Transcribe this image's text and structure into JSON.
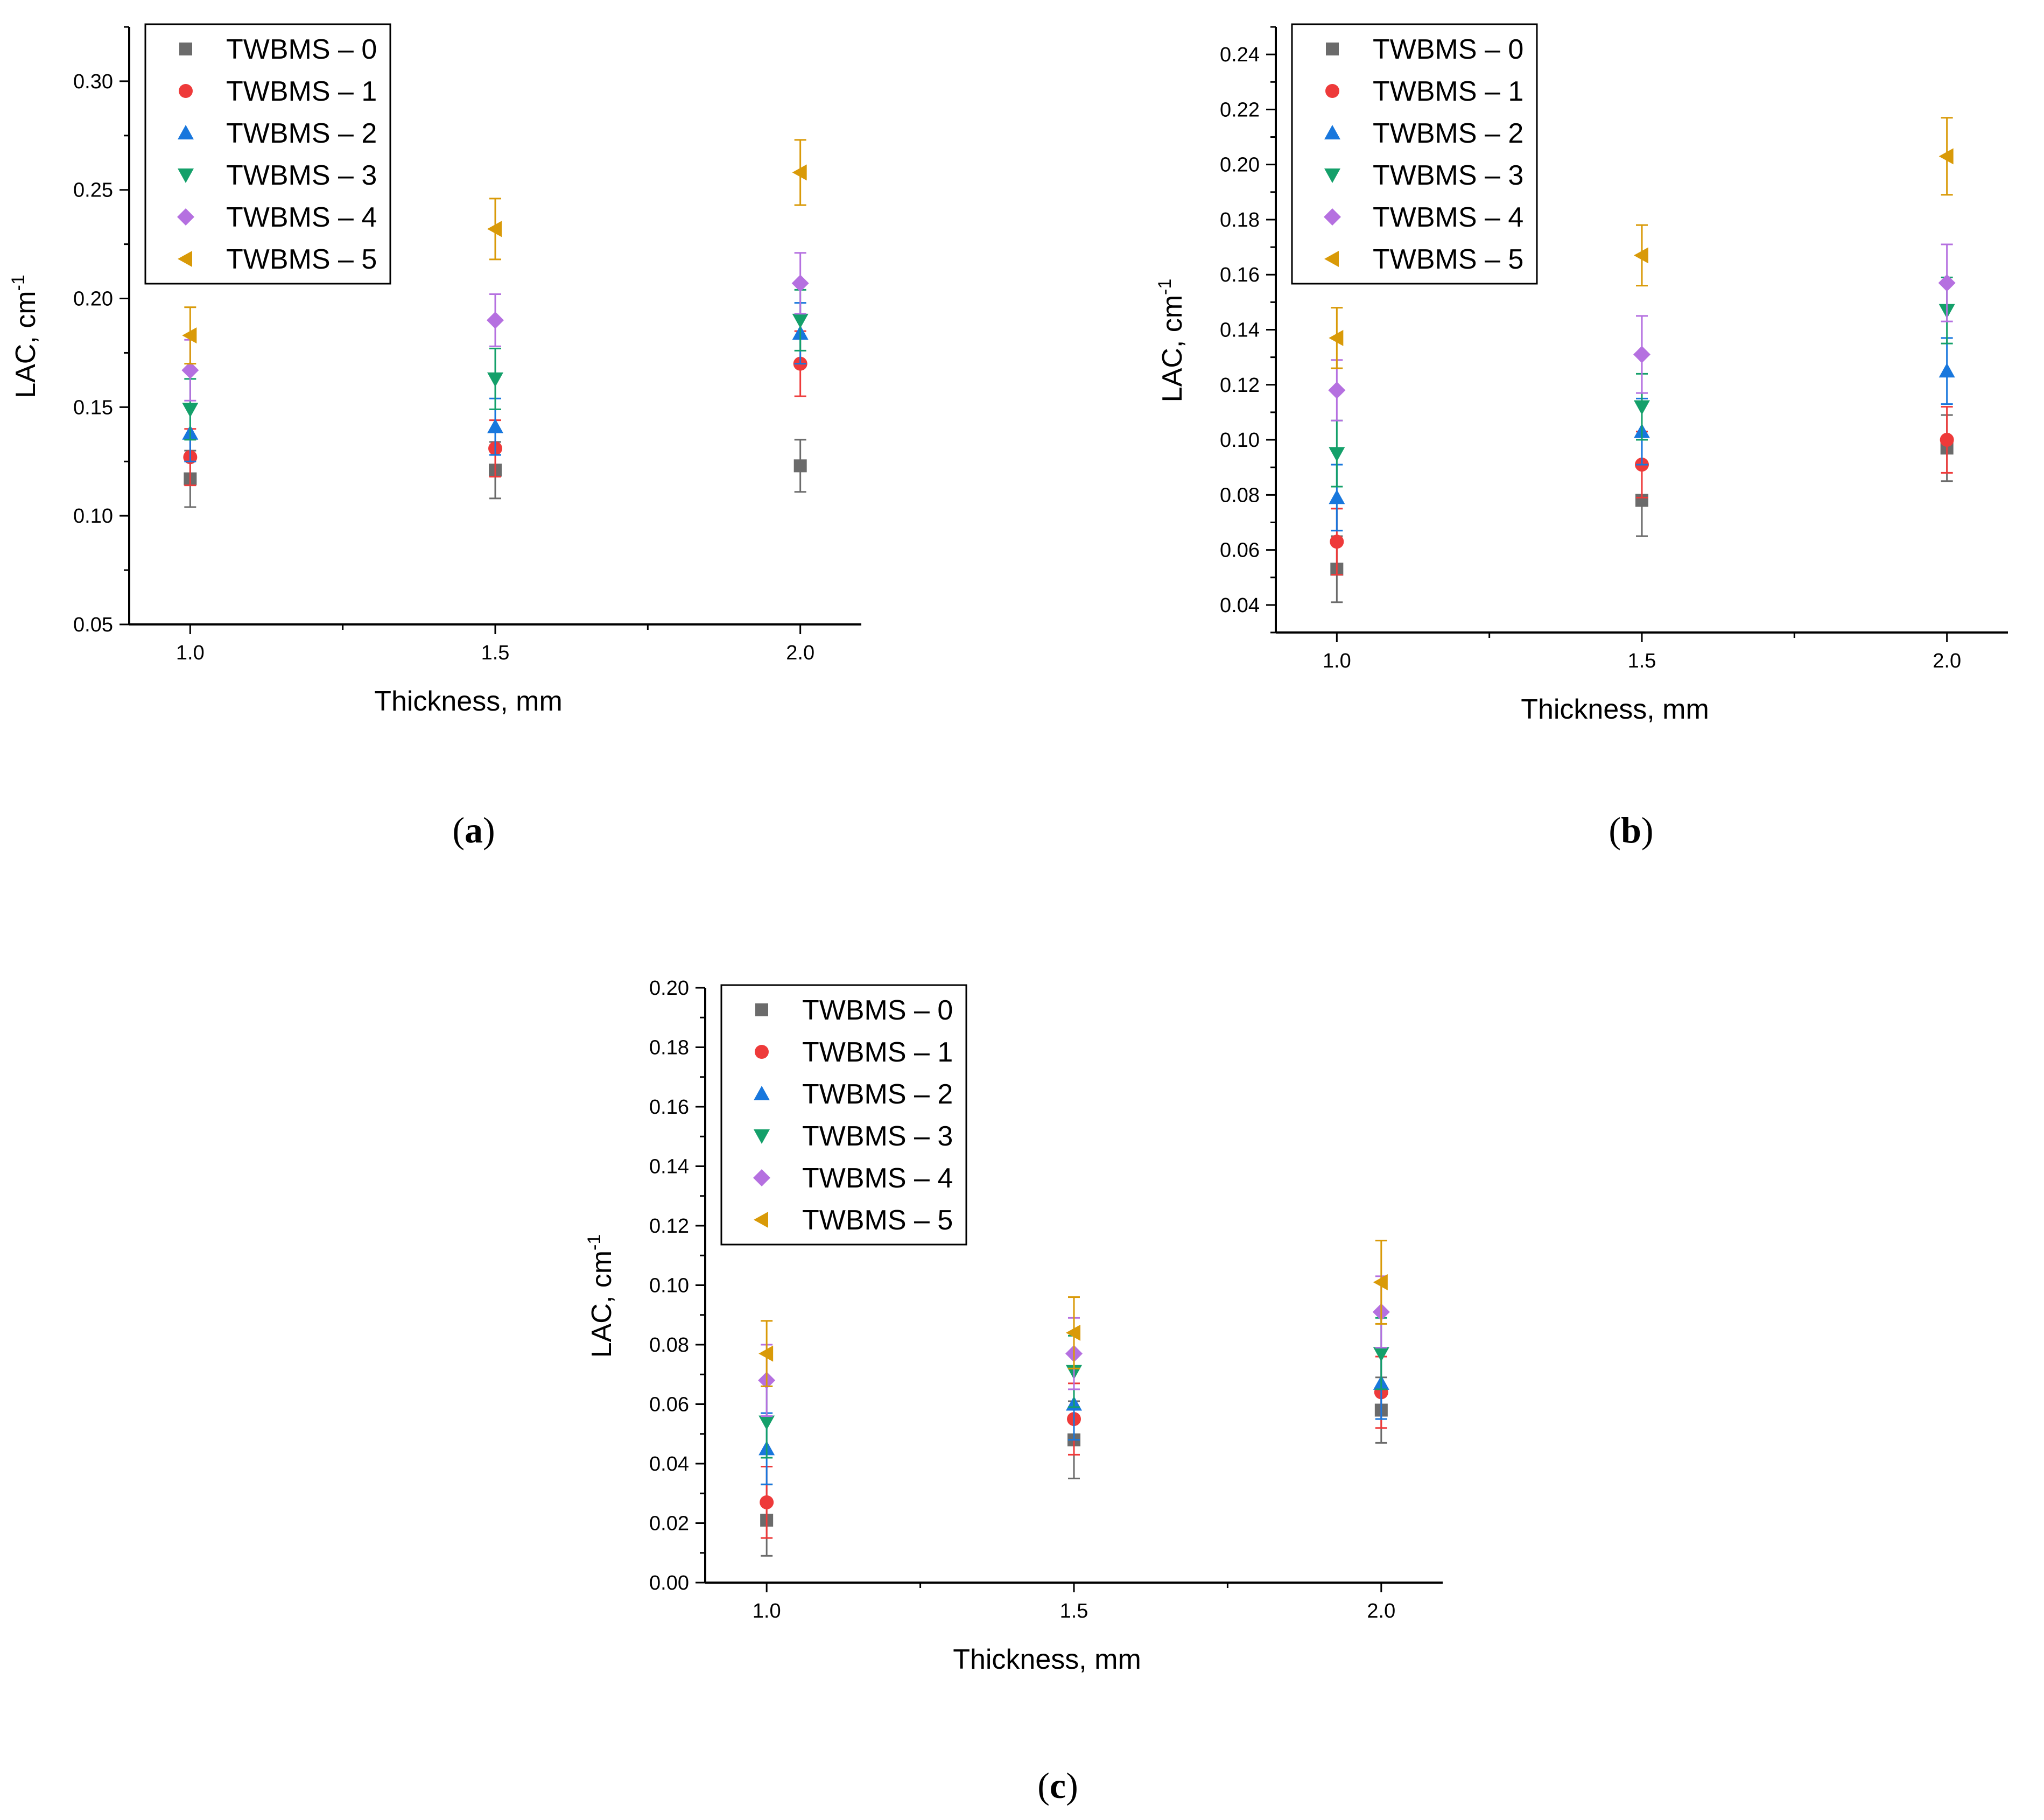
{
  "series_styles": [
    {
      "name": "TWBMS – 0",
      "color": "#6b6b6b",
      "marker": "square"
    },
    {
      "name": "TWBMS – 1",
      "color": "#ee3a3a",
      "marker": "circle"
    },
    {
      "name": "TWBMS – 2",
      "color": "#1877dd",
      "marker": "triangle-up"
    },
    {
      "name": "TWBMS – 3",
      "color": "#14a06a",
      "marker": "triangle-down"
    },
    {
      "name": "TWBMS – 4",
      "color": "#b570e0",
      "marker": "diamond"
    },
    {
      "name": "TWBMS – 5",
      "color": "#d99a08",
      "marker": "triangle-left"
    }
  ],
  "chart_data": [
    {
      "type": "scatter",
      "panel_label": "a",
      "xlabel": "Thickness, mm",
      "ylabel": "LAC, cm",
      "ylabel_sup": "-1",
      "xlim": [
        0.9,
        2.1
      ],
      "ylim": [
        0.05,
        0.325
      ],
      "xticks": [
        1.0,
        1.5,
        2.0
      ],
      "xtick_labels": [
        "1.0",
        "1.5",
        "2.0"
      ],
      "yticks": [
        0.05,
        0.1,
        0.15,
        0.2,
        0.25,
        0.3
      ],
      "ytick_labels": [
        "0.05",
        "0.10",
        "0.15",
        "0.20",
        "0.25",
        "0.30"
      ],
      "legend_position": "top-left",
      "x": [
        1.0,
        1.5,
        2.0
      ],
      "series": [
        {
          "name": "TWBMS – 0",
          "values": [
            0.117,
            0.121,
            0.123
          ],
          "errors": [
            0.013,
            0.013,
            0.012
          ]
        },
        {
          "name": "TWBMS – 1",
          "values": [
            0.127,
            0.131,
            0.17
          ],
          "errors": [
            0.013,
            0.013,
            0.015
          ]
        },
        {
          "name": "TWBMS – 2",
          "values": [
            0.138,
            0.141,
            0.184
          ],
          "errors": [
            0.013,
            0.013,
            0.014
          ]
        },
        {
          "name": "TWBMS – 3",
          "values": [
            0.149,
            0.163,
            0.19
          ],
          "errors": [
            0.014,
            0.014,
            0.014
          ]
        },
        {
          "name": "TWBMS – 4",
          "values": [
            0.167,
            0.19,
            0.207
          ],
          "errors": [
            0.014,
            0.012,
            0.014
          ]
        },
        {
          "name": "TWBMS – 5",
          "values": [
            0.183,
            0.232,
            0.258
          ],
          "errors": [
            0.013,
            0.014,
            0.015
          ]
        }
      ]
    },
    {
      "type": "scatter",
      "panel_label": "b",
      "xlabel": "Thickness, mm",
      "ylabel": "LAC, cm",
      "ylabel_sup": "-1",
      "xlim": [
        0.9,
        2.1
      ],
      "ylim": [
        0.03,
        0.25
      ],
      "xticks": [
        1.0,
        1.5,
        2.0
      ],
      "xtick_labels": [
        "1.0",
        "1.5",
        "2.0"
      ],
      "yticks": [
        0.04,
        0.06,
        0.08,
        0.1,
        0.12,
        0.14,
        0.16,
        0.18,
        0.2,
        0.22,
        0.24
      ],
      "ytick_labels": [
        "0.04",
        "0.06",
        "0.08",
        "0.10",
        "0.12",
        "0.14",
        "0.16",
        "0.18",
        "0.20",
        "0.22",
        "0.24"
      ],
      "legend_position": "top-left",
      "x": [
        1.0,
        1.5,
        2.0
      ],
      "series": [
        {
          "name": "TWBMS – 0",
          "values": [
            0.053,
            0.078,
            0.097
          ],
          "errors": [
            0.012,
            0.013,
            0.012
          ]
        },
        {
          "name": "TWBMS – 1",
          "values": [
            0.063,
            0.091,
            0.1
          ],
          "errors": [
            0.012,
            0.012,
            0.012
          ]
        },
        {
          "name": "TWBMS – 2",
          "values": [
            0.079,
            0.103,
            0.125
          ],
          "errors": [
            0.012,
            0.012,
            0.012
          ]
        },
        {
          "name": "TWBMS – 3",
          "values": [
            0.095,
            0.112,
            0.147
          ],
          "errors": [
            0.012,
            0.012,
            0.012
          ]
        },
        {
          "name": "TWBMS – 4",
          "values": [
            0.118,
            0.131,
            0.157
          ],
          "errors": [
            0.011,
            0.014,
            0.014
          ]
        },
        {
          "name": "TWBMS – 5",
          "values": [
            0.137,
            0.167,
            0.203
          ],
          "errors": [
            0.011,
            0.011,
            0.014
          ]
        }
      ]
    },
    {
      "type": "scatter",
      "panel_label": "c",
      "xlabel": "Thickness, mm",
      "ylabel": "LAC, cm",
      "ylabel_sup": "-1",
      "xlim": [
        0.9,
        2.1
      ],
      "ylim": [
        0.0,
        0.2
      ],
      "xticks": [
        1.0,
        1.5,
        2.0
      ],
      "xtick_labels": [
        "1.0",
        "1.5",
        "2.0"
      ],
      "yticks": [
        0.0,
        0.02,
        0.04,
        0.06,
        0.08,
        0.1,
        0.12,
        0.14,
        0.16,
        0.18,
        0.2
      ],
      "ytick_labels": [
        "0.00",
        "0.02",
        "0.04",
        "0.06",
        "0.08",
        "0.10",
        "0.12",
        "0.14",
        "0.16",
        "0.18",
        "0.20"
      ],
      "legend_position": "top-left",
      "x": [
        1.0,
        1.5,
        2.0
      ],
      "series": [
        {
          "name": "TWBMS – 0",
          "values": [
            0.021,
            0.048,
            0.058
          ],
          "errors": [
            0.012,
            0.013,
            0.011
          ]
        },
        {
          "name": "TWBMS – 1",
          "values": [
            0.027,
            0.055,
            0.064
          ],
          "errors": [
            0.012,
            0.012,
            0.012
          ]
        },
        {
          "name": "TWBMS – 2",
          "values": [
            0.045,
            0.06,
            0.067
          ],
          "errors": [
            0.012,
            0.012,
            0.012
          ]
        },
        {
          "name": "TWBMS – 3",
          "values": [
            0.054,
            0.071,
            0.077
          ],
          "errors": [
            0.012,
            0.012,
            0.012
          ]
        },
        {
          "name": "TWBMS – 4",
          "values": [
            0.068,
            0.077,
            0.091
          ],
          "errors": [
            0.012,
            0.012,
            0.012
          ]
        },
        {
          "name": "TWBMS – 5",
          "values": [
            0.077,
            0.084,
            0.101
          ],
          "errors": [
            0.011,
            0.012,
            0.014
          ]
        }
      ]
    }
  ]
}
